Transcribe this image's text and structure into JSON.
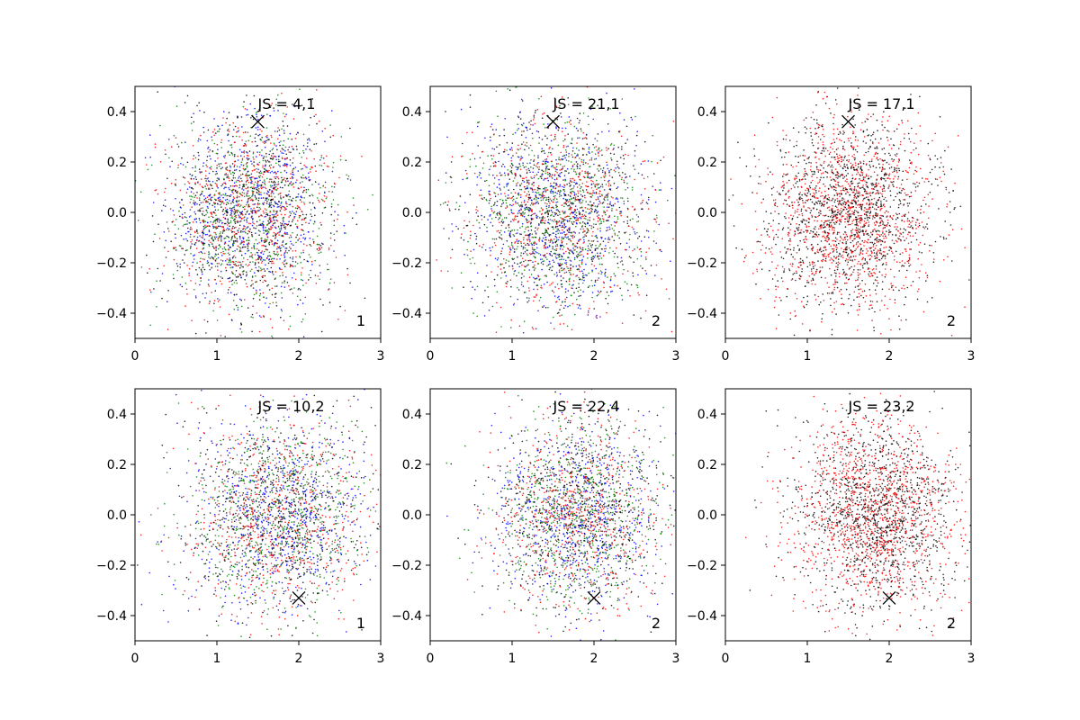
{
  "chart_data": [
    {
      "type": "scatter",
      "annotation": "JS = 4,1",
      "corner_label": "1",
      "xlim": [
        0,
        3
      ],
      "ylim": [
        -0.5,
        0.5
      ],
      "xticks": [
        0,
        1,
        2,
        3
      ],
      "yticks": [
        -0.4,
        -0.2,
        0.0,
        0.2,
        0.4
      ],
      "marker": {
        "symbol": "x",
        "x": 1.5,
        "y": 0.36
      },
      "cloud": {
        "center": [
          1.4,
          0.0
        ],
        "spread": [
          0.5,
          0.19
        ],
        "count": 2600
      },
      "series": [
        {
          "color": "#0000ff"
        },
        {
          "color": "#ff0000"
        },
        {
          "color": "#008000"
        },
        {
          "color": "#000000"
        }
      ]
    },
    {
      "type": "scatter",
      "annotation": "JS = 21,1",
      "corner_label": "2",
      "xlim": [
        0,
        3
      ],
      "ylim": [
        -0.5,
        0.5
      ],
      "xticks": [
        0,
        1,
        2,
        3
      ],
      "yticks": [
        -0.4,
        -0.2,
        0.0,
        0.2,
        0.4
      ],
      "marker": {
        "symbol": "x",
        "x": 1.5,
        "y": 0.36
      },
      "cloud": {
        "center": [
          1.55,
          0.0
        ],
        "spread": [
          0.55,
          0.19
        ],
        "count": 2600
      },
      "series": [
        {
          "color": "#0000ff"
        },
        {
          "color": "#ff0000"
        },
        {
          "color": "#008000"
        },
        {
          "color": "#000000"
        }
      ]
    },
    {
      "type": "scatter",
      "annotation": "JS = 17,1",
      "corner_label": "2",
      "xlim": [
        0,
        3
      ],
      "ylim": [
        -0.5,
        0.5
      ],
      "xticks": [
        0,
        1,
        2,
        3
      ],
      "yticks": [
        -0.4,
        -0.2,
        0.0,
        0.2,
        0.4
      ],
      "marker": {
        "symbol": "x",
        "x": 1.5,
        "y": 0.36
      },
      "cloud": {
        "center": [
          1.5,
          0.0
        ],
        "spread": [
          0.5,
          0.19
        ],
        "count": 2400
      },
      "series": [
        {
          "color": "#ff0000"
        },
        {
          "color": "#000000"
        }
      ]
    },
    {
      "type": "scatter",
      "annotation": "JS = 10,2",
      "corner_label": "1",
      "xlim": [
        0,
        3
      ],
      "ylim": [
        -0.5,
        0.5
      ],
      "xticks": [
        0,
        1,
        2,
        3
      ],
      "yticks": [
        -0.4,
        -0.2,
        0.0,
        0.2,
        0.4
      ],
      "marker": {
        "symbol": "x",
        "x": 2.0,
        "y": -0.33
      },
      "cloud": {
        "center": [
          1.75,
          0.0
        ],
        "spread": [
          0.55,
          0.19
        ],
        "count": 2600
      },
      "series": [
        {
          "color": "#0000ff"
        },
        {
          "color": "#ff0000"
        },
        {
          "color": "#008000"
        },
        {
          "color": "#000000"
        }
      ]
    },
    {
      "type": "scatter",
      "annotation": "JS = 22,4",
      "corner_label": "2",
      "xlim": [
        0,
        3
      ],
      "ylim": [
        -0.5,
        0.5
      ],
      "xticks": [
        0,
        1,
        2,
        3
      ],
      "yticks": [
        -0.4,
        -0.2,
        0.0,
        0.2,
        0.4
      ],
      "marker": {
        "symbol": "x",
        "x": 2.0,
        "y": -0.33
      },
      "cloud": {
        "center": [
          1.8,
          0.0
        ],
        "spread": [
          0.5,
          0.19
        ],
        "count": 2600
      },
      "series": [
        {
          "color": "#0000ff"
        },
        {
          "color": "#ff0000"
        },
        {
          "color": "#008000"
        },
        {
          "color": "#000000"
        }
      ]
    },
    {
      "type": "scatter",
      "annotation": "JS = 23,2",
      "corner_label": "2",
      "xlim": [
        0,
        3
      ],
      "ylim": [
        -0.5,
        0.5
      ],
      "xticks": [
        0,
        1,
        2,
        3
      ],
      "yticks": [
        -0.4,
        -0.2,
        0.0,
        0.2,
        0.4
      ],
      "marker": {
        "symbol": "x",
        "x": 2.0,
        "y": -0.33
      },
      "cloud": {
        "center": [
          1.85,
          0.0
        ],
        "spread": [
          0.5,
          0.19
        ],
        "count": 2400
      },
      "series": [
        {
          "color": "#ff0000"
        },
        {
          "color": "#000000"
        }
      ]
    }
  ]
}
